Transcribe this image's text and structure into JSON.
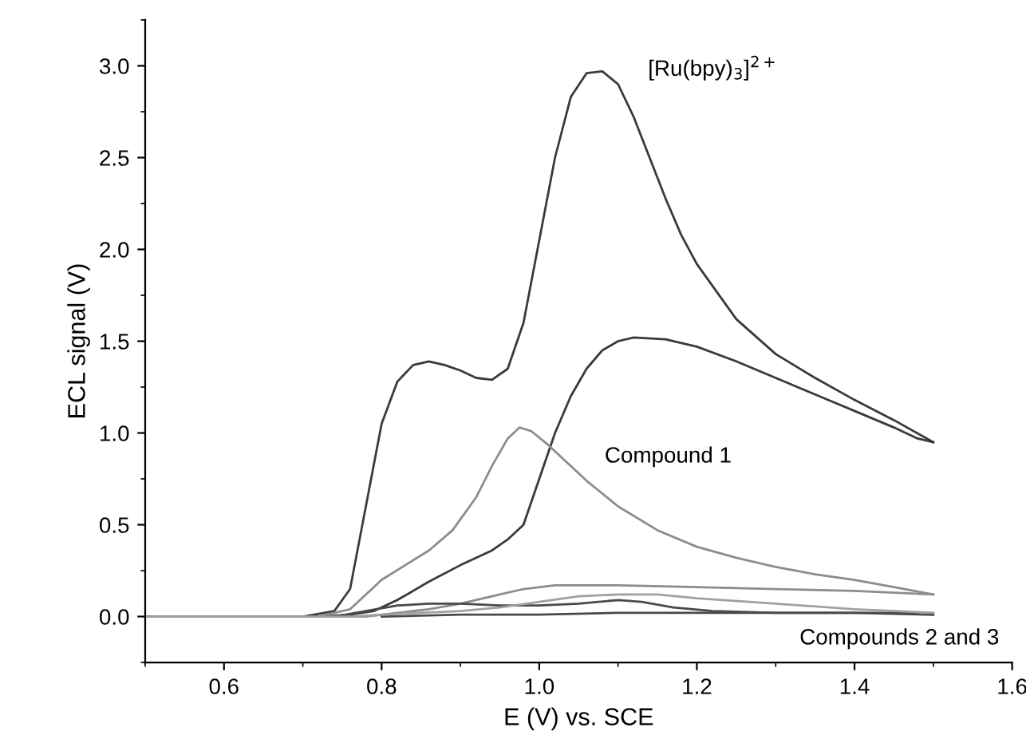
{
  "chart_data": {
    "type": "line",
    "xlabel": "E (V) vs. SCE",
    "ylabel": "ECL signal (V)",
    "xlim": [
      0.5,
      1.6
    ],
    "xticks": [
      0.6,
      0.8,
      {
        "value": 1,
        "label": "1.0"
      },
      1.2,
      1.4,
      1.6
    ],
    "ylim": [
      -0.25,
      3.25
    ],
    "yticks": [
      {
        "value": 0,
        "label": "0.0"
      },
      0.5,
      {
        "value": 1,
        "label": "1.0"
      },
      1.5,
      {
        "value": 2,
        "label": "2.0"
      },
      2.5,
      {
        "value": 3,
        "label": "3.0"
      }
    ],
    "grid": false,
    "legend": false,
    "marker": "none",
    "line_style": "solid",
    "annotations": [
      "[Ru(bpy)$_{3}$]$^{2+}$",
      "Compound 1",
      "Compounds 2 and 3"
    ],
    "series": [
      {
        "color": "#3a3a3a",
        "x": [
          0.5,
          0.7,
          0.74,
          0.76,
          0.78,
          0.8,
          0.82,
          0.84,
          0.86,
          0.88,
          0.9,
          0.92,
          0.94,
          0.96,
          0.98,
          1.0,
          1.02,
          1.04,
          1.06,
          1.08,
          1.1,
          1.12,
          1.14,
          1.16,
          1.18,
          1.2,
          1.25,
          1.3,
          1.35,
          1.4,
          1.45,
          1.5
        ],
        "values": [
          0.0,
          0.0,
          0.03,
          0.15,
          0.6,
          1.05,
          1.28,
          1.37,
          1.39,
          1.37,
          1.34,
          1.3,
          1.29,
          1.35,
          1.6,
          2.05,
          2.5,
          2.83,
          2.96,
          2.97,
          2.9,
          2.72,
          2.5,
          2.28,
          2.08,
          1.92,
          1.62,
          1.43,
          1.3,
          1.18,
          1.07,
          0.95
        ]
      },
      {
        "color": "#3a3a3a",
        "x": [
          0.5,
          0.72,
          0.76,
          0.79,
          0.82,
          0.86,
          0.9,
          0.94,
          0.96,
          0.98,
          1.0,
          1.02,
          1.04,
          1.06,
          1.08,
          1.1,
          1.12,
          1.16,
          1.2,
          1.25,
          1.3,
          1.35,
          1.4,
          1.45,
          1.48,
          1.5
        ],
        "values": [
          0.0,
          0.0,
          0.01,
          0.03,
          0.09,
          0.19,
          0.28,
          0.36,
          0.42,
          0.5,
          0.75,
          1.0,
          1.2,
          1.35,
          1.45,
          1.5,
          1.52,
          1.51,
          1.47,
          1.39,
          1.3,
          1.21,
          1.12,
          1.03,
          0.97,
          0.95
        ]
      },
      {
        "color": "#8c8c8c",
        "x": [
          0.5,
          0.72,
          0.76,
          0.78,
          0.8,
          0.83,
          0.86,
          0.89,
          0.92,
          0.94,
          0.96,
          0.975,
          0.99,
          1.01,
          1.03,
          1.06,
          1.1,
          1.15,
          1.2,
          1.25,
          1.3,
          1.35,
          1.4,
          1.45,
          1.5
        ],
        "values": [
          0.0,
          0.0,
          0.04,
          0.12,
          0.2,
          0.28,
          0.36,
          0.47,
          0.65,
          0.82,
          0.97,
          1.03,
          1.01,
          0.94,
          0.86,
          0.74,
          0.6,
          0.47,
          0.38,
          0.32,
          0.27,
          0.23,
          0.2,
          0.16,
          0.12
        ]
      },
      {
        "color": "#8c8c8c",
        "x": [
          0.5,
          0.78,
          0.82,
          0.86,
          0.9,
          0.94,
          0.98,
          1.02,
          1.1,
          1.2,
          1.3,
          1.4,
          1.45,
          1.5
        ],
        "values": [
          0.0,
          0.0,
          0.02,
          0.04,
          0.07,
          0.11,
          0.15,
          0.17,
          0.17,
          0.16,
          0.15,
          0.14,
          0.13,
          0.12
        ]
      },
      {
        "color": "#4a4a4a",
        "x": [
          0.5,
          0.74,
          0.78,
          0.82,
          0.86,
          0.9,
          0.95,
          1.0,
          1.05,
          1.1,
          1.13,
          1.17,
          1.22,
          1.3,
          1.4,
          1.5
        ],
        "values": [
          0.0,
          0.0,
          0.03,
          0.06,
          0.07,
          0.07,
          0.06,
          0.06,
          0.07,
          0.09,
          0.08,
          0.05,
          0.03,
          0.02,
          0.02,
          0.01
        ]
      },
      {
        "color": "#4a4a4a",
        "x": [
          0.8,
          0.9,
          1.0,
          1.1,
          1.2,
          1.3,
          1.4,
          1.48
        ],
        "values": [
          0.0,
          0.01,
          0.01,
          0.02,
          0.02,
          0.02,
          0.02,
          0.02
        ]
      },
      {
        "color": "#a0a0a0",
        "x": [
          0.5,
          0.76,
          0.8,
          0.85,
          0.9,
          0.95,
          1.0,
          1.05,
          1.1,
          1.15,
          1.2,
          1.3,
          1.4,
          1.5
        ],
        "values": [
          0.0,
          0.0,
          0.01,
          0.02,
          0.03,
          0.05,
          0.08,
          0.11,
          0.12,
          0.12,
          0.1,
          0.07,
          0.04,
          0.02
        ]
      }
    ]
  }
}
